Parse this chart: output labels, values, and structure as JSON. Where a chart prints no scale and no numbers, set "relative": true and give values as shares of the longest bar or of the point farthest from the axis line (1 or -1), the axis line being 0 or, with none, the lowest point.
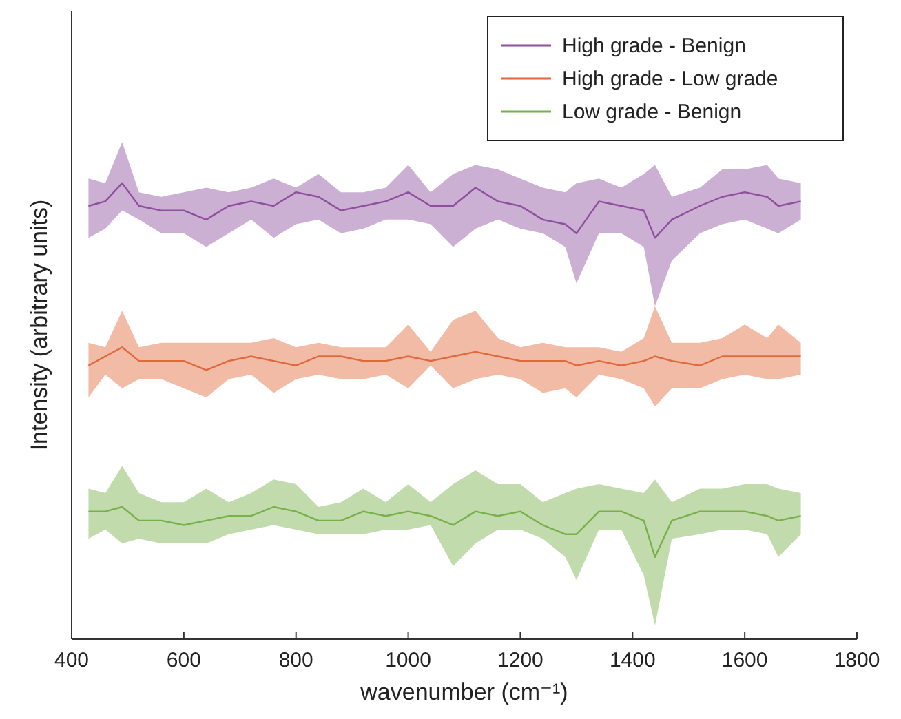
{
  "chart_data": {
    "type": "line",
    "relative": true,
    "xlabel": "wavenumber (cm⁻¹)",
    "ylabel": "Intensity (arbitrary units)",
    "xlim": [
      400,
      1800
    ],
    "xticks": [
      400,
      600,
      800,
      1000,
      1200,
      1400,
      1600,
      1800
    ],
    "legend": "top right",
    "grid": false,
    "x": [
      430,
      460,
      490,
      520,
      560,
      600,
      640,
      680,
      720,
      760,
      800,
      840,
      880,
      920,
      960,
      1000,
      1040,
      1080,
      1120,
      1160,
      1200,
      1240,
      1280,
      1300,
      1340,
      1380,
      1420,
      1440,
      1470,
      1520,
      1560,
      1600,
      1640,
      1660,
      1700
    ],
    "series": [
      {
        "name": "High grade - Benign",
        "color": "#8e4f9e",
        "values": [
          0.95,
          0.96,
          1.0,
          0.95,
          0.94,
          0.94,
          0.92,
          0.95,
          0.96,
          0.95,
          0.98,
          0.97,
          0.94,
          0.95,
          0.96,
          0.98,
          0.95,
          0.95,
          0.99,
          0.96,
          0.95,
          0.92,
          0.91,
          0.89,
          0.96,
          0.95,
          0.94,
          0.88,
          0.92,
          0.95,
          0.97,
          0.98,
          0.97,
          0.95,
          0.96
        ],
        "upper": [
          1.01,
          1.0,
          1.09,
          0.98,
          0.97,
          0.98,
          0.99,
          0.98,
          0.99,
          1.01,
          0.99,
          1.02,
          0.98,
          0.98,
          0.99,
          1.04,
          0.98,
          1.02,
          1.04,
          1.03,
          1.01,
          0.99,
          0.98,
          1.0,
          1.01,
          0.99,
          1.02,
          1.04,
          0.97,
          0.99,
          1.03,
          1.03,
          1.04,
          1.01,
          1.0
        ],
        "lower": [
          0.88,
          0.9,
          0.94,
          0.92,
          0.89,
          0.89,
          0.86,
          0.89,
          0.92,
          0.88,
          0.91,
          0.92,
          0.89,
          0.9,
          0.92,
          0.92,
          0.91,
          0.86,
          0.9,
          0.92,
          0.9,
          0.89,
          0.86,
          0.78,
          0.89,
          0.89,
          0.86,
          0.73,
          0.83,
          0.89,
          0.91,
          0.92,
          0.9,
          0.89,
          0.92
        ]
      },
      {
        "name": "High grade - Low grade",
        "color": "#e0683a",
        "values": [
          0.6,
          0.62,
          0.64,
          0.61,
          0.61,
          0.61,
          0.59,
          0.61,
          0.62,
          0.61,
          0.6,
          0.62,
          0.62,
          0.61,
          0.61,
          0.62,
          0.61,
          0.62,
          0.63,
          0.62,
          0.61,
          0.61,
          0.61,
          0.6,
          0.61,
          0.6,
          0.61,
          0.62,
          0.61,
          0.6,
          0.62,
          0.62,
          0.62,
          0.62,
          0.62
        ],
        "upper": [
          0.65,
          0.64,
          0.72,
          0.64,
          0.65,
          0.65,
          0.65,
          0.65,
          0.65,
          0.66,
          0.64,
          0.65,
          0.64,
          0.64,
          0.64,
          0.69,
          0.63,
          0.7,
          0.72,
          0.66,
          0.64,
          0.65,
          0.64,
          0.64,
          0.64,
          0.63,
          0.66,
          0.73,
          0.65,
          0.65,
          0.66,
          0.69,
          0.66,
          0.69,
          0.65
        ],
        "lower": [
          0.53,
          0.58,
          0.55,
          0.57,
          0.57,
          0.55,
          0.53,
          0.57,
          0.58,
          0.54,
          0.57,
          0.58,
          0.57,
          0.57,
          0.58,
          0.55,
          0.6,
          0.55,
          0.57,
          0.58,
          0.57,
          0.54,
          0.55,
          0.53,
          0.58,
          0.57,
          0.55,
          0.51,
          0.55,
          0.55,
          0.57,
          0.58,
          0.57,
          0.57,
          0.58
        ]
      },
      {
        "name": "Low grade - Benign",
        "color": "#78b04a",
        "values": [
          0.28,
          0.28,
          0.29,
          0.26,
          0.26,
          0.25,
          0.26,
          0.27,
          0.27,
          0.29,
          0.28,
          0.26,
          0.26,
          0.28,
          0.27,
          0.28,
          0.27,
          0.25,
          0.28,
          0.27,
          0.28,
          0.25,
          0.23,
          0.23,
          0.28,
          0.28,
          0.26,
          0.18,
          0.26,
          0.28,
          0.28,
          0.28,
          0.27,
          0.26,
          0.27
        ],
        "upper": [
          0.33,
          0.32,
          0.38,
          0.32,
          0.3,
          0.3,
          0.33,
          0.3,
          0.32,
          0.35,
          0.34,
          0.29,
          0.3,
          0.33,
          0.3,
          0.34,
          0.3,
          0.34,
          0.37,
          0.34,
          0.34,
          0.3,
          0.32,
          0.33,
          0.34,
          0.33,
          0.32,
          0.35,
          0.3,
          0.33,
          0.33,
          0.34,
          0.34,
          0.33,
          0.32
        ],
        "lower": [
          0.22,
          0.24,
          0.21,
          0.22,
          0.21,
          0.21,
          0.21,
          0.23,
          0.24,
          0.25,
          0.24,
          0.23,
          0.23,
          0.23,
          0.24,
          0.24,
          0.25,
          0.16,
          0.21,
          0.24,
          0.24,
          0.22,
          0.18,
          0.13,
          0.24,
          0.24,
          0.14,
          0.03,
          0.22,
          0.23,
          0.24,
          0.24,
          0.23,
          0.18,
          0.23
        ]
      }
    ]
  }
}
